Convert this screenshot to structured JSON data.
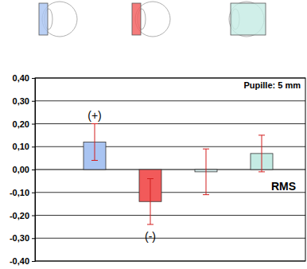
{
  "chart_data": {
    "type": "bar",
    "categories": [
      null,
      null,
      null,
      null
    ],
    "values": [
      0.12,
      -0.14,
      -0.01,
      0.07
    ],
    "errors": [
      0.08,
      0.1,
      0.1,
      0.08
    ],
    "colors": [
      "#a9c4f2",
      "#f25a5a",
      "#d8eeee",
      "#c4ebe3"
    ],
    "ylim": [
      -0.4,
      0.4
    ],
    "yticks": [
      {
        "value": -0.4,
        "label": "-0,40"
      },
      {
        "value": -0.3,
        "label": "-0,30"
      },
      {
        "value": -0.2,
        "label": "-0,20"
      },
      {
        "value": -0.1,
        "label": "-0,10"
      },
      {
        "value": 0,
        "label": "0,00"
      },
      {
        "value": 0.1,
        "label": "0,10"
      },
      {
        "value": 0.2,
        "label": "0,20"
      },
      {
        "value": 0.3,
        "label": "0,30"
      },
      {
        "value": 0.4,
        "label": "0,40"
      }
    ],
    "grid": true,
    "annotations": [
      "Pupille: 5 mm",
      "(+)",
      "(-)",
      "RMS"
    ]
  }
}
